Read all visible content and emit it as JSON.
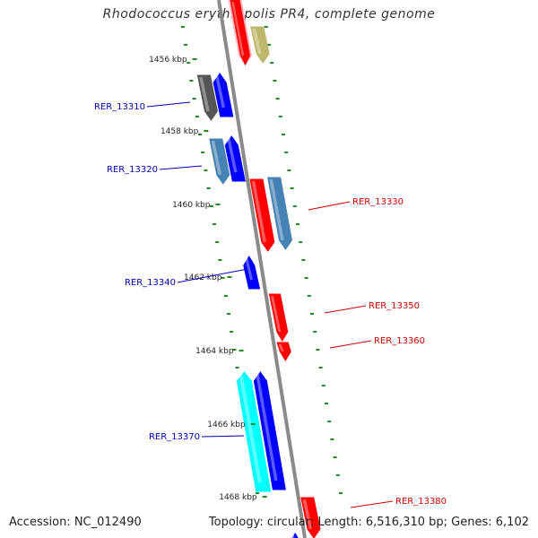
{
  "title": "Rhodococcus erythropolis PR4, complete genome",
  "accession": "Accession: NC_012490",
  "topology": "Topology: circular; Length: 6,516,310 bp; Genes: 6,102",
  "ticks": [
    "1456 kbp",
    "1458 kbp",
    "1460 kbp",
    "1462 kbp",
    "1464 kbp",
    "1466 kbp",
    "1468 kbp"
  ],
  "gene_labels": {
    "left": [
      "RER_13310",
      "RER_13320",
      "RER_13340",
      "RER_13370"
    ],
    "right": [
      "RER_13330",
      "RER_13350",
      "RER_13360",
      "RER_13380"
    ]
  },
  "colors": {
    "backbone": "#8a8a8a",
    "tick": "#1f8a1f",
    "left_label": "#0000b0",
    "right_label": "#d00000",
    "gene_blue": "#0000ff",
    "gene_red": "#ff0000",
    "gene_steel": "#4682b4",
    "gene_gray": "#555555",
    "gene_cyan": "#00ffff",
    "gene_khaki": "#bdb76b",
    "gene_pink": "#ffb6c1"
  }
}
